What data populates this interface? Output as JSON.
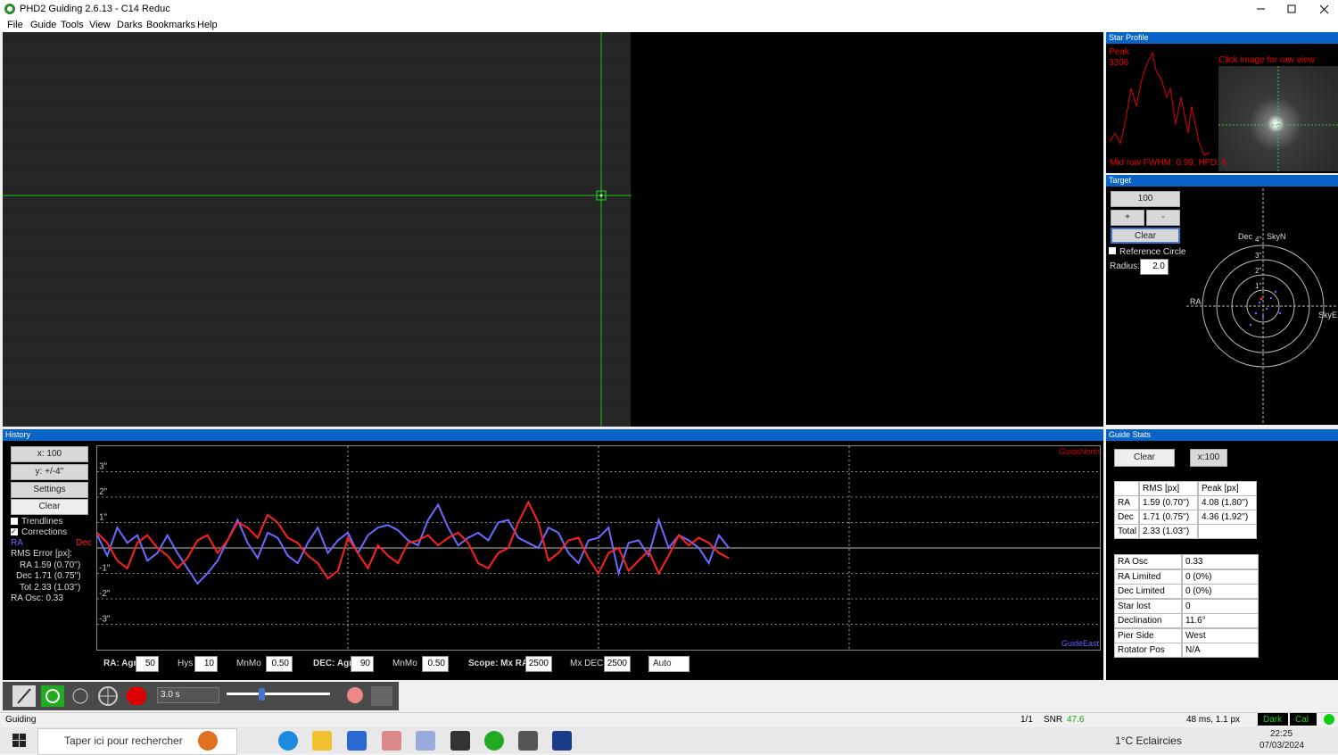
{
  "window": {
    "title": "PHD2 Guiding 2.6.13 - C14 Reduc"
  },
  "menu": [
    "File",
    "Guide",
    "Tools",
    "View",
    "Darks",
    "Bookmarks",
    "Help"
  ],
  "star_profile": {
    "title": "Star Profile",
    "peak_label": "Peak",
    "peak_value": "3306",
    "hint": "Click image for raw view",
    "fwhm": "Mid row FWHM: 0.99, HFD: 6"
  },
  "target": {
    "title": "Target",
    "zoom": "100",
    "plus": "+",
    "minus": "-",
    "clear": "Clear",
    "reference_circle": "Reference Circle",
    "radius_label": "Radius:",
    "radius": "2.0",
    "dec": "Dec",
    "sky_n": "SkyN",
    "ra": "RA",
    "sky_e": "SkyE",
    "rings": [
      "4\"",
      "3\"",
      "2\"",
      "1\""
    ]
  },
  "history": {
    "title": "History",
    "x_scale": "x: 100",
    "y_scale": "y: +/-4''",
    "settings": "Settings",
    "clear": "Clear",
    "trendlines": "Trendlines",
    "corrections": "Corrections",
    "rms_title": "RMS Error [px]:",
    "rms": [
      "RA 1.59 (0.70'')",
      "Dec 1.71 (0.75'')",
      "Tot 2.33 (1.03'')"
    ],
    "ra_osc": "RA Osc: 0.33",
    "tuning": [
      {
        "label": "RA: Agr",
        "value": "50"
      },
      {
        "label": "Hys",
        "value": "10"
      },
      {
        "label": "MnMo",
        "value": "0.50"
      },
      {
        "label": "DEC: Agr",
        "value": "90"
      },
      {
        "label": "MnMo",
        "value": "0.50"
      },
      {
        "label": "Scope: Mx RA",
        "value": "2500"
      },
      {
        "label": "Mx DEC",
        "value": "2500"
      }
    ],
    "mode": "Auto"
  },
  "chart_data": {
    "type": "line",
    "annotations": [
      "GuideNorth",
      "GuideEast"
    ],
    "x": [
      0,
      1,
      2,
      3,
      4,
      5,
      6,
      7,
      8,
      9,
      10,
      11,
      12,
      13,
      14,
      15,
      16,
      17,
      18,
      19,
      20,
      21,
      22,
      23,
      24,
      25,
      26,
      27,
      28,
      29,
      30,
      31,
      32,
      33,
      34,
      35,
      36,
      37,
      38,
      39,
      40,
      41,
      42,
      43,
      44,
      45,
      46,
      47,
      48,
      49,
      50,
      51,
      52,
      53,
      54,
      55,
      56,
      57,
      58,
      59,
      60,
      61,
      62,
      63
    ],
    "xlim": [
      0,
      100
    ],
    "xticks": [
      25,
      50,
      75
    ],
    "ylim": [
      -4,
      4
    ],
    "yticks": [
      {
        "value": 3,
        "label": "3\""
      },
      {
        "value": 2,
        "label": "2\""
      },
      {
        "value": 1,
        "label": "1\""
      },
      {
        "value": -1,
        "label": "-1\""
      },
      {
        "value": -2,
        "label": "-2\""
      },
      {
        "value": -3,
        "label": "-3\""
      }
    ],
    "series": [
      {
        "name": "RA",
        "color": "#6a6aff",
        "values": [
          0.5,
          -0.3,
          0.8,
          0.2,
          0.5,
          -0.5,
          -0.2,
          0.5,
          -0.2,
          -0.8,
          -1.4,
          -1.0,
          -0.5,
          0.3,
          1.1,
          0.2,
          -0.4,
          0.6,
          0.4,
          -0.3,
          -0.6,
          0.2,
          0.8,
          -0.2,
          0.3,
          0.6,
          -0.2,
          0.5,
          0.8,
          0.9,
          0.7,
          0.3,
          0.1,
          1.1,
          1.7,
          0.8,
          0.1,
          0.4,
          0.6,
          0.3,
          1.0,
          1.1,
          0.4,
          0.2,
          0.0,
          0.8,
          0.6,
          -0.2,
          -0.6,
          0.3,
          0.4,
          0.8,
          -1.0,
          0.2,
          0.3,
          -0.3,
          1.1,
          0.0,
          0.5,
          0.3,
          0.0,
          -0.6,
          0.5,
          0.0
        ]
      },
      {
        "name": "Dec",
        "color": "#ff2020",
        "values": [
          0.6,
          0.2,
          -0.5,
          -0.8,
          0.2,
          0.5,
          0.0,
          -0.3,
          -0.8,
          -0.4,
          0.3,
          0.5,
          -0.2,
          0.3,
          1.0,
          0.8,
          0.4,
          1.3,
          1.0,
          0.4,
          0.2,
          -0.3,
          -0.6,
          -1.2,
          -0.9,
          0.4,
          -0.2,
          -0.8,
          0.1,
          -0.3,
          -0.6,
          0.2,
          0.3,
          0.5,
          0.1,
          0.4,
          0.6,
          0.2,
          -0.6,
          -0.8,
          -0.2,
          0.0,
          1.0,
          1.8,
          1.0,
          -0.5,
          -0.2,
          0.3,
          0.4,
          -0.4,
          -1.0,
          -0.2,
          0.0,
          -0.9,
          -0.5,
          -0.1,
          -1.0,
          -0.3,
          0.5,
          0.1,
          0.4,
          0.2,
          -0.2,
          -0.4
        ]
      }
    ]
  },
  "guide_stats": {
    "title": "Guide Stats",
    "clear": "Clear",
    "x_scale": "x:100",
    "columns": [
      "RMS [px]",
      "Peak [px]"
    ],
    "rows": [
      [
        "RA",
        "1.59 (0.70'')",
        "4.08 (1.80'')"
      ],
      [
        "Dec",
        "1.71 (0.75'')",
        "4.36 (1.92'')"
      ],
      [
        "Total",
        "2.33 (1.03'')",
        ""
      ]
    ],
    "info": [
      [
        "RA Osc",
        "0.33"
      ],
      [
        "RA Limited",
        "0 (0%)"
      ],
      [
        "Dec Limited",
        "0 (0%)"
      ],
      [
        "Star lost",
        "0"
      ],
      [
        "Declination",
        "11.6°"
      ],
      [
        "Pier Side",
        "West"
      ],
      [
        "Rotator Pos",
        "N/A"
      ]
    ]
  },
  "toolbar": {
    "exposure": "3.0 s"
  },
  "status": {
    "state": "Guiding",
    "frame": "1/1",
    "snr_label": "SNR",
    "snr": "47.6",
    "timing": "48 ms, 1.1 px",
    "dark": "Dark",
    "cal": "Cal"
  },
  "taskbar": {
    "search": "Taper ici pour rechercher",
    "weather": "1°C  Eclaircies",
    "time": "22:25",
    "date": "07/03/2024"
  }
}
